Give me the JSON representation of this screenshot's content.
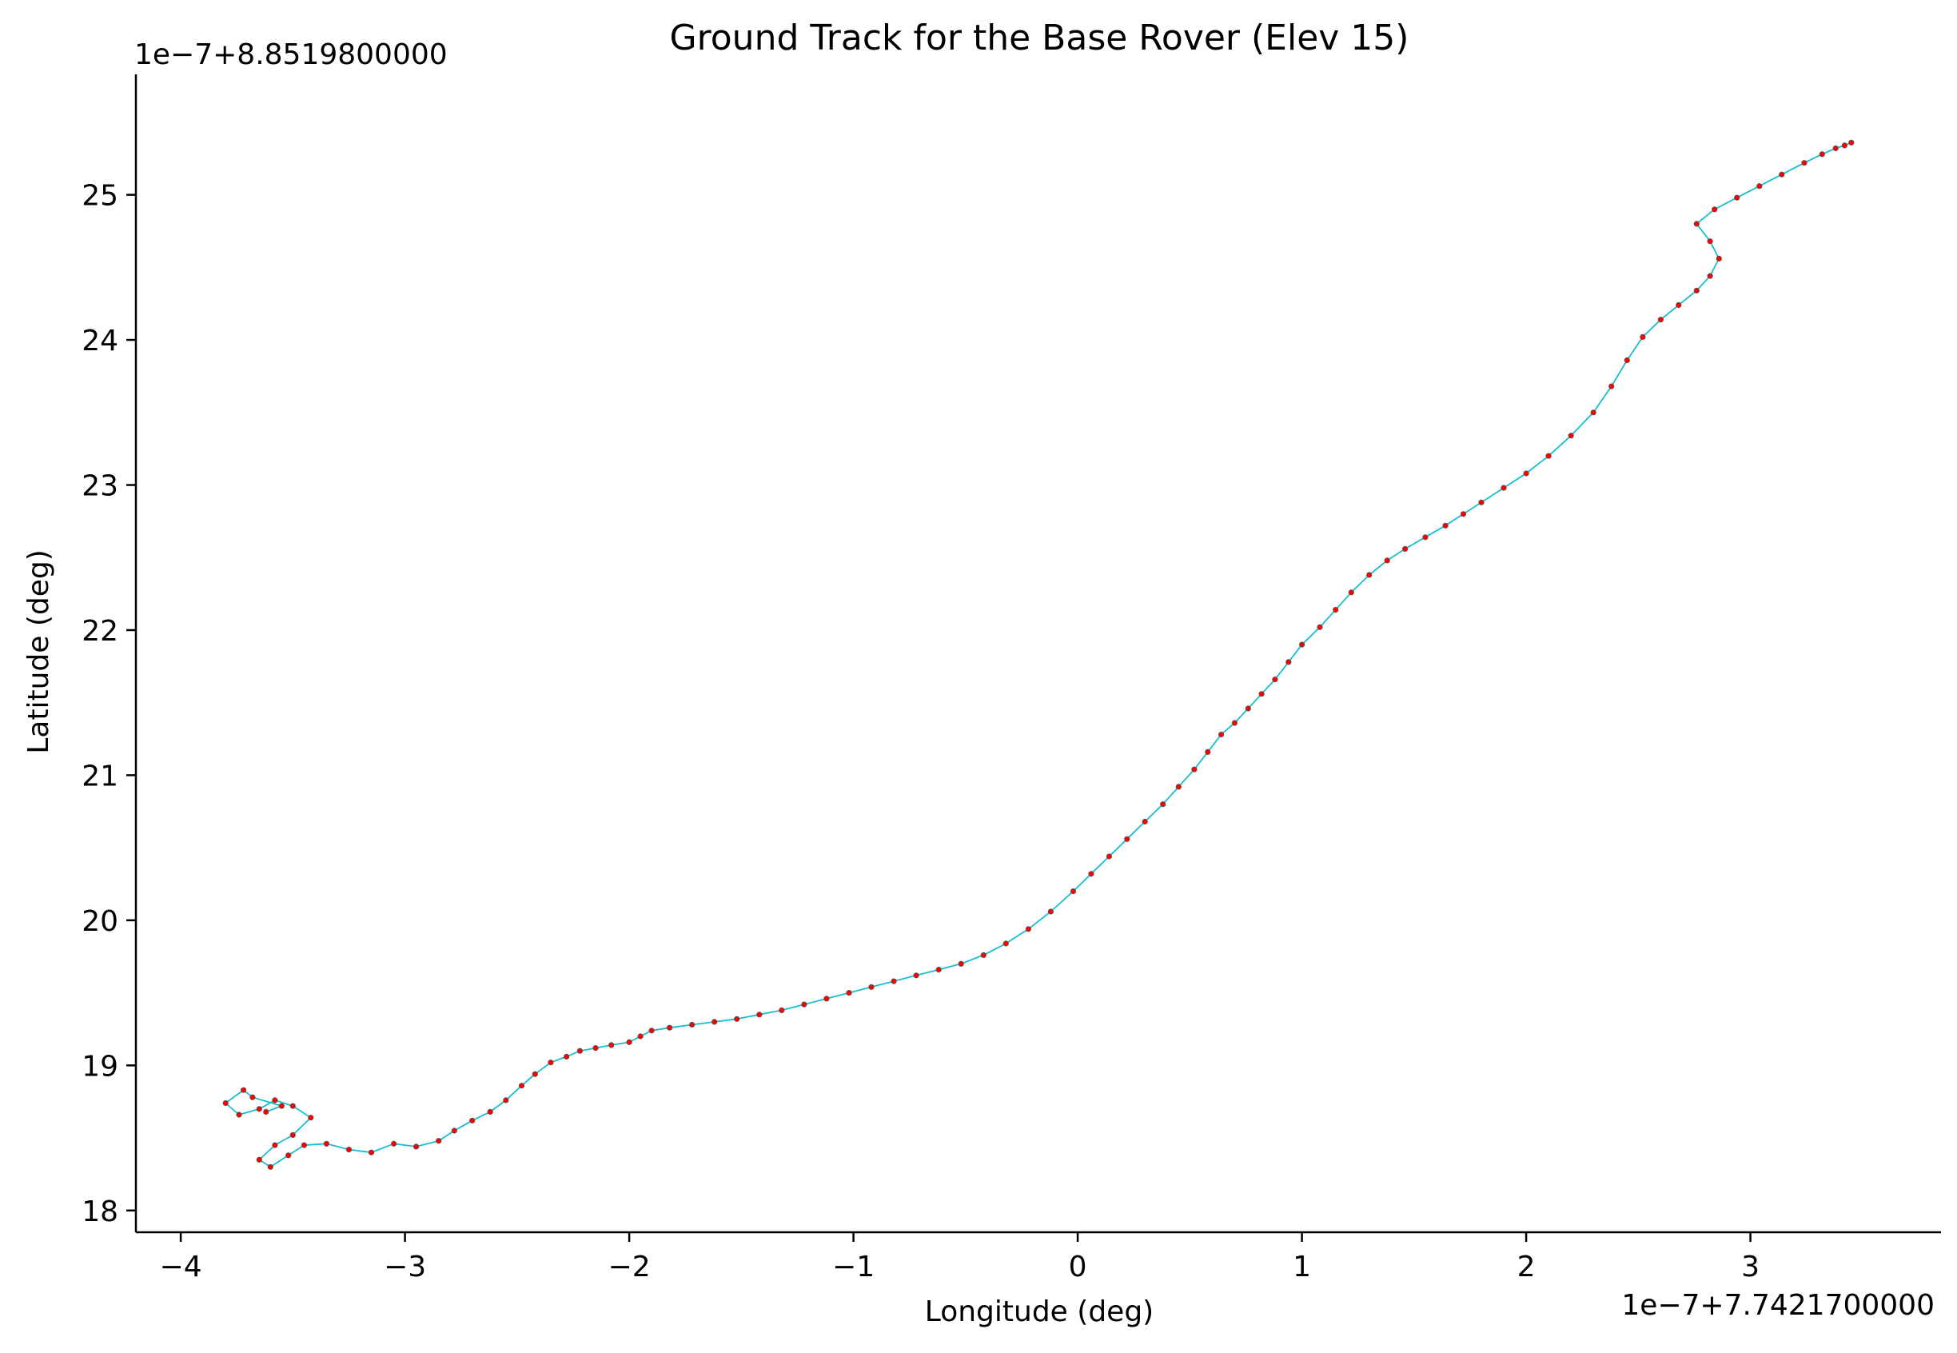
{
  "chart_data": {
    "type": "line",
    "title": "Ground Track for the Base Rover (Elev 15)",
    "xlabel": "Longitude (deg)",
    "ylabel": "Latitude (deg)",
    "x_offset_label": "1e−7+7.7421700000",
    "y_offset_label": "1e−7+8.8519800000",
    "xlim": [
      -4.2,
      3.85
    ],
    "ylim": [
      17.85,
      25.83
    ],
    "x_ticks": [
      -4,
      -3,
      -2,
      -1,
      0,
      1,
      2,
      3
    ],
    "y_ticks": [
      18,
      19,
      20,
      21,
      22,
      23,
      24,
      25
    ],
    "x_tick_labels": [
      "−4",
      "−3",
      "−2",
      "−1",
      "0",
      "1",
      "2",
      "3"
    ],
    "y_tick_labels": [
      "18",
      "19",
      "20",
      "21",
      "22",
      "23",
      "24",
      "25"
    ],
    "grid": false,
    "line_color": "#17becf",
    "marker_color": "#ff0000",
    "marker_edge_color": "#555555",
    "series": [
      {
        "x": [
          -3.62,
          -3.55,
          -3.68,
          -3.72,
          -3.8,
          -3.74,
          -3.65,
          -3.58,
          -3.5,
          -3.42,
          -3.5,
          -3.58,
          -3.65,
          -3.6,
          -3.52,
          -3.45,
          -3.35,
          -3.25,
          -3.15,
          -3.05,
          -2.95,
          -2.85,
          -2.78,
          -2.7,
          -2.62,
          -2.55,
          -2.48,
          -2.42,
          -2.35,
          -2.28,
          -2.22,
          -2.15,
          -2.08,
          -2.0,
          -1.95,
          -1.9,
          -1.82,
          -1.72,
          -1.62,
          -1.52,
          -1.42,
          -1.32,
          -1.22,
          -1.12,
          -1.02,
          -0.92,
          -0.82,
          -0.72,
          -0.62,
          -0.52,
          -0.42,
          -0.32,
          -0.22,
          -0.12,
          -0.02,
          0.06,
          0.14,
          0.22,
          0.3,
          0.38,
          0.45,
          0.52,
          0.58,
          0.64,
          0.7,
          0.76,
          0.82,
          0.88,
          0.94,
          1.0,
          1.08,
          1.15,
          1.22,
          1.3,
          1.38,
          1.46,
          1.55,
          1.64,
          1.72,
          1.8,
          1.9,
          2.0,
          2.1,
          2.2,
          2.3,
          2.38,
          2.45,
          2.52,
          2.6,
          2.68,
          2.76,
          2.82,
          2.86,
          2.82,
          2.76,
          2.84,
          2.94,
          3.04,
          3.14,
          3.24,
          3.32,
          3.38,
          3.42,
          3.45
        ],
        "y": [
          18.68,
          18.72,
          18.78,
          18.83,
          18.74,
          18.66,
          18.7,
          18.76,
          18.72,
          18.64,
          18.52,
          18.45,
          18.35,
          18.3,
          18.38,
          18.45,
          18.46,
          18.42,
          18.4,
          18.46,
          18.44,
          18.48,
          18.55,
          18.62,
          18.68,
          18.76,
          18.86,
          18.94,
          19.02,
          19.06,
          19.1,
          19.12,
          19.14,
          19.16,
          19.2,
          19.24,
          19.26,
          19.28,
          19.3,
          19.32,
          19.35,
          19.38,
          19.42,
          19.46,
          19.5,
          19.54,
          19.58,
          19.62,
          19.66,
          19.7,
          19.76,
          19.84,
          19.94,
          20.06,
          20.2,
          20.32,
          20.44,
          20.56,
          20.68,
          20.8,
          20.92,
          21.04,
          21.16,
          21.28,
          21.36,
          21.46,
          21.56,
          21.66,
          21.78,
          21.9,
          22.02,
          22.14,
          22.26,
          22.38,
          22.48,
          22.56,
          22.64,
          22.72,
          22.8,
          22.88,
          22.98,
          23.08,
          23.2,
          23.34,
          23.5,
          23.68,
          23.86,
          24.02,
          24.14,
          24.24,
          24.34,
          24.44,
          24.56,
          24.68,
          24.8,
          24.9,
          24.98,
          25.06,
          25.14,
          25.22,
          25.28,
          25.32,
          25.34,
          25.36
        ]
      }
    ]
  }
}
